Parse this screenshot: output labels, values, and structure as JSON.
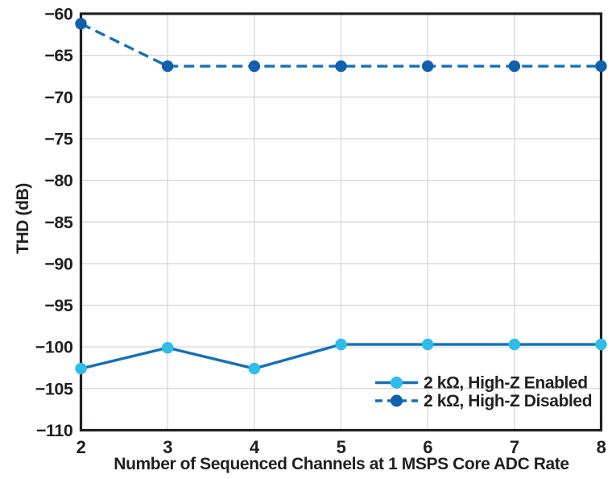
{
  "chart_data": {
    "type": "line",
    "xlabel": "Number of Sequenced Channels at 1 MSPS Core ADC Rate",
    "ylabel": "THD (dB)",
    "x": [
      2,
      3,
      4,
      5,
      6,
      7,
      8
    ],
    "xlim": [
      2,
      8
    ],
    "ylim": [
      -110,
      -60
    ],
    "x_ticks": [
      2,
      3,
      4,
      5,
      6,
      7,
      8
    ],
    "x_tick_labels": [
      "2",
      "3",
      "4",
      "5",
      "6",
      "7",
      "8"
    ],
    "y_ticks": [
      -60,
      -65,
      -70,
      -75,
      -80,
      -85,
      -90,
      -95,
      -100,
      -105,
      -110
    ],
    "y_tick_labels": [
      "−60",
      "−65",
      "−70",
      "−75",
      "−80",
      "−85",
      "−90",
      "−95",
      "−100",
      "−105",
      "−110"
    ],
    "grid": true,
    "legend_position": "inside bottom-right",
    "series": [
      {
        "name": "2 kΩ, High-Z Enabled",
        "line_style": "solid",
        "line_color": "#1470b8",
        "marker_color": "#2ebce9",
        "values": [
          -102.6,
          -100.1,
          -102.6,
          -99.7,
          -99.7,
          -99.7,
          -99.7
        ]
      },
      {
        "name": "2 kΩ, High-Z Disabled",
        "line_style": "dashed",
        "line_color": "#1470b8",
        "marker_color": "#1160ae",
        "values": [
          -61.2,
          -66.3,
          -66.3,
          -66.3,
          -66.3,
          -66.3,
          -66.3
        ]
      }
    ],
    "colors": {
      "axis_frame": "#231f20",
      "grid": "#d8dadc",
      "background": "#ffffff",
      "text": "#231f20"
    }
  }
}
